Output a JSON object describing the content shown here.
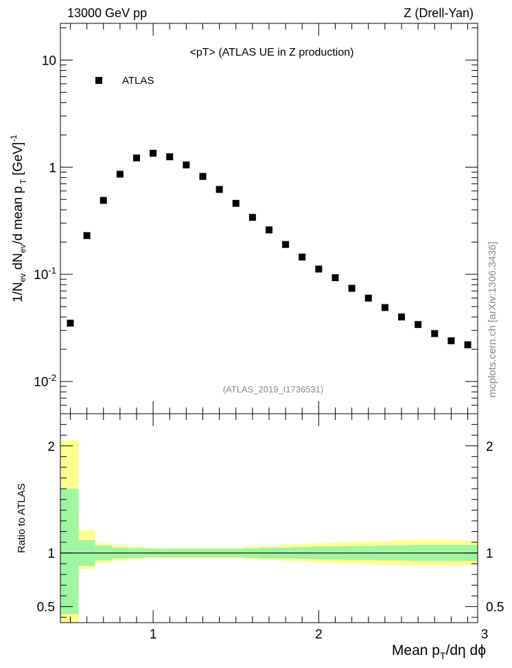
{
  "header": {
    "left": "13000 GeV pp",
    "right": "Z (Drell-Yan)"
  },
  "watermark": "mcplots.cern.ch [arXiv:1306.3436]",
  "chart_data": {
    "type": "scatter",
    "title": "<pT> (ATLAS UE in Z production)",
    "reference": "(ATLAS_2019_I1736531)",
    "legend": {
      "entries": [
        "ATLAS"
      ],
      "placement": "top-left"
    },
    "xlabel": "Mean p_T/dη dϕ",
    "ylabel": "1/N_ev dN_ev/d mean p_T [GeV]^-1",
    "xlim": [
      0.44,
      2.96
    ],
    "x_ticks": [
      "1",
      "2",
      "3"
    ],
    "main": {
      "yscale": "log",
      "ylim": [
        0.005,
        22
      ],
      "y_ticks": [
        "10^-2",
        "10^-1",
        "1",
        "10"
      ],
      "series": [
        {
          "name": "ATLAS",
          "marker": "square",
          "color": "#000000",
          "x": [
            0.5,
            0.6,
            0.7,
            0.8,
            0.9,
            1.0,
            1.1,
            1.2,
            1.3,
            1.4,
            1.5,
            1.6,
            1.7,
            1.8,
            1.9,
            2.0,
            2.1,
            2.2,
            2.3,
            2.4,
            2.5,
            2.6,
            2.7,
            2.8,
            2.9
          ],
          "y": [
            0.035,
            0.23,
            0.49,
            0.86,
            1.22,
            1.35,
            1.25,
            1.05,
            0.82,
            0.62,
            0.46,
            0.34,
            0.26,
            0.19,
            0.145,
            0.112,
            0.093,
            0.074,
            0.06,
            0.049,
            0.04,
            0.034,
            0.028,
            0.024,
            0.022
          ]
        }
      ]
    },
    "ratio": {
      "ylabel": "Ratio to ATLAS",
      "yscale": "linear",
      "ylim": [
        0.35,
        2.3
      ],
      "y_ticks": [
        "0.5",
        "1",
        "2"
      ],
      "reference_line": 1,
      "bins": [
        0.44,
        0.55,
        0.65,
        0.75,
        0.85,
        0.95,
        1.05,
        1.15,
        1.25,
        1.35,
        1.45,
        1.55,
        1.65,
        1.75,
        1.85,
        1.95,
        2.05,
        2.15,
        2.25,
        2.35,
        2.45,
        2.55,
        2.65,
        2.75,
        2.85,
        2.96
      ],
      "stat_band": {
        "color": "#a0f5a0",
        "low": [
          0.43,
          0.88,
          0.93,
          0.95,
          0.955,
          0.96,
          0.96,
          0.96,
          0.96,
          0.96,
          0.96,
          0.955,
          0.95,
          0.95,
          0.945,
          0.94,
          0.94,
          0.935,
          0.935,
          0.93,
          0.93,
          0.925,
          0.925,
          0.925,
          0.925
        ],
        "high": [
          1.6,
          1.12,
          1.07,
          1.05,
          1.045,
          1.04,
          1.04,
          1.04,
          1.04,
          1.04,
          1.04,
          1.045,
          1.05,
          1.05,
          1.055,
          1.06,
          1.06,
          1.065,
          1.065,
          1.07,
          1.07,
          1.075,
          1.075,
          1.075,
          1.075
        ]
      },
      "total_band": {
        "color": "#ffff90",
        "low": [
          0.35,
          0.85,
          0.91,
          0.93,
          0.94,
          0.95,
          0.95,
          0.95,
          0.95,
          0.95,
          0.95,
          0.94,
          0.935,
          0.925,
          0.92,
          0.91,
          0.905,
          0.9,
          0.895,
          0.89,
          0.885,
          0.88,
          0.88,
          0.88,
          0.885
        ],
        "high": [
          2.05,
          1.21,
          1.09,
          1.07,
          1.06,
          1.05,
          1.05,
          1.05,
          1.05,
          1.05,
          1.05,
          1.06,
          1.065,
          1.075,
          1.08,
          1.09,
          1.095,
          1.1,
          1.105,
          1.11,
          1.12,
          1.125,
          1.125,
          1.12,
          1.115
        ]
      }
    }
  }
}
